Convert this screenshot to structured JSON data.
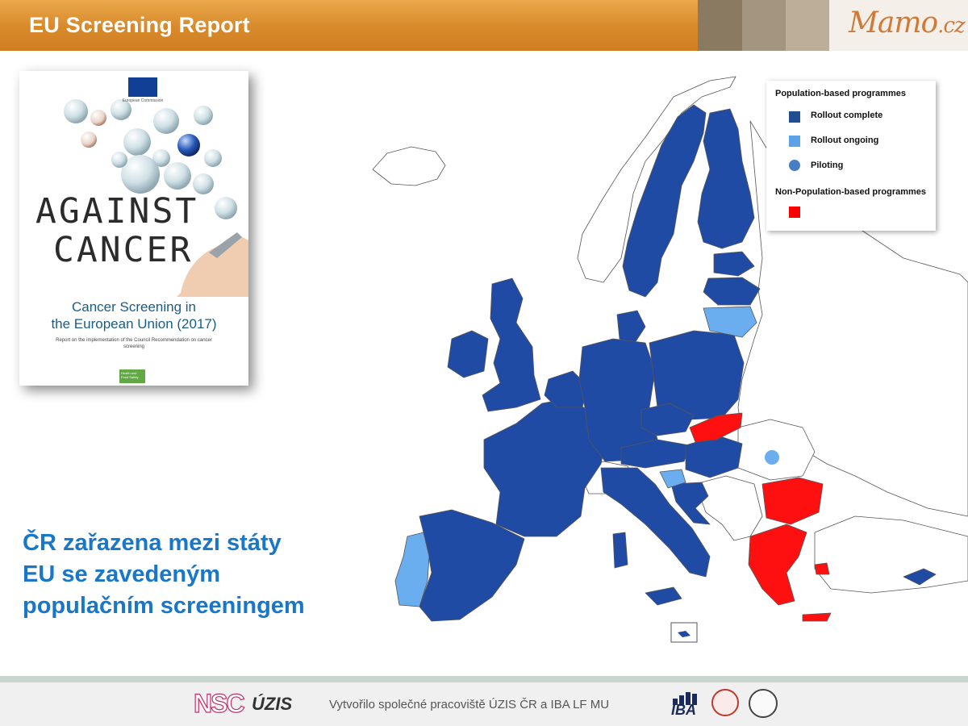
{
  "header": {
    "title": "EU Screening Report",
    "logo_text": "Mamo",
    "logo_suffix": ".cz",
    "colors": {
      "bar": "#d8892a",
      "stripe1": "#8b7a62",
      "stripe2": "#a49580",
      "stripe3": "#bcae98"
    }
  },
  "cover": {
    "against_line1": "AGAINST",
    "against_line2": "CANCER",
    "title_line1": "Cancer Screening in",
    "title_line2": "the European Union (2017)",
    "subtitle": "Report on the implementation of the Council Recommendation on cancer screening",
    "publisher": "European Commission",
    "badge": "Health and Food Safety"
  },
  "legend": {
    "heading_population": "Population-based programmes",
    "rollout_complete": "Rollout complete",
    "rollout_ongoing": "Rollout ongoing",
    "piloting": "Piloting",
    "heading_non_population": "Non-Population-based programmes",
    "colors": {
      "rollout_complete": "#1f4f92",
      "rollout_ongoing": "#5ba3e6",
      "piloting": "#4a7ec4",
      "non_population": "#ff0000"
    }
  },
  "map": {
    "colors": {
      "rollout_complete": "#1f4ba5",
      "rollout_ongoing": "#6aaef0",
      "non_population": "#ff1010",
      "non_eu": "#ffffff",
      "border": "#555555"
    },
    "categories": {
      "rollout_complete": [
        "Finland",
        "Sweden",
        "Estonia",
        "Latvia",
        "Ireland",
        "United Kingdom",
        "France",
        "Spain",
        "Belgium",
        "Netherlands",
        "Luxembourg",
        "Germany",
        "Denmark",
        "Poland",
        "Czech Republic",
        "Austria",
        "Hungary",
        "Italy",
        "Croatia",
        "Cyprus",
        "Malta"
      ],
      "rollout_ongoing": [
        "Lithuania",
        "Portugal",
        "Slovenia"
      ],
      "piloting": [
        "Romania"
      ],
      "non_population": [
        "Slovakia",
        "Bulgaria",
        "Greece"
      ]
    }
  },
  "caption": {
    "line1": "ČR zařazena mezi státy",
    "line2": "EU se zavedeným",
    "line3": "populačním screeningem"
  },
  "footer": {
    "text": "Vytvořilo společné pracoviště ÚZIS ČR a IBA LF MU",
    "logo_nsc": "NSC",
    "logo_uzis": "ÚZIS",
    "logo_iba": "IBA"
  }
}
